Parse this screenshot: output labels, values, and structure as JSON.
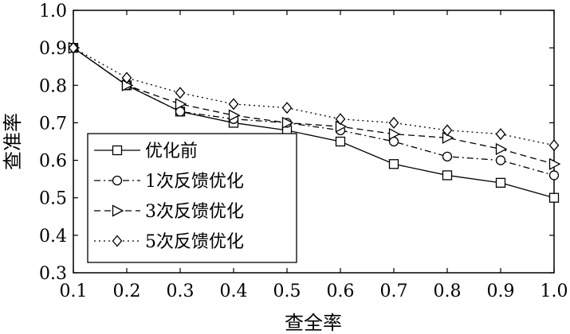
{
  "chart_data": {
    "type": "line",
    "xlabel": "查全率",
    "ylabel": "查准率",
    "xlim": [
      0.1,
      1.0
    ],
    "ylim": [
      0.3,
      1.0
    ],
    "x": [
      0.1,
      0.2,
      0.3,
      0.4,
      0.5,
      0.6,
      0.7,
      0.8,
      0.9,
      1.0
    ],
    "xticks": [
      "0.1",
      "0.2",
      "0.3",
      "0.4",
      "0.5",
      "0.6",
      "0.7",
      "0.8",
      "0.9",
      "1.0"
    ],
    "yticks": [
      "0.3",
      "0.4",
      "0.5",
      "0.6",
      "0.7",
      "0.8",
      "0.9",
      "1.0"
    ],
    "grid": false,
    "legend_position": "bottom-left",
    "series": [
      {
        "name": "优化前",
        "marker": "square",
        "dash": "solid",
        "values": [
          0.9,
          0.8,
          0.73,
          0.7,
          0.68,
          0.65,
          0.59,
          0.56,
          0.54,
          0.5
        ]
      },
      {
        "name": "1次反馈优化",
        "marker": "circle",
        "dash": "dashdot",
        "values": [
          0.9,
          0.8,
          0.73,
          0.71,
          0.7,
          0.68,
          0.65,
          0.61,
          0.6,
          0.56
        ]
      },
      {
        "name": "3次反馈优化",
        "marker": "triangle-right",
        "dash": "dashed",
        "values": [
          0.9,
          0.8,
          0.75,
          0.72,
          0.7,
          0.69,
          0.67,
          0.66,
          0.63,
          0.59
        ]
      },
      {
        "name": "5次反馈优化",
        "marker": "diamond",
        "dash": "dotted",
        "values": [
          0.9,
          0.82,
          0.78,
          0.75,
          0.74,
          0.71,
          0.7,
          0.68,
          0.67,
          0.64
        ]
      }
    ]
  }
}
